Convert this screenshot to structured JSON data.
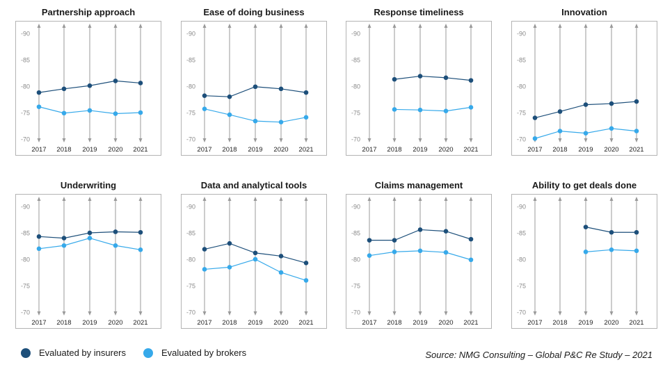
{
  "colors": {
    "insurers": "#1d4f7a",
    "brokers": "#36a9ea",
    "frame": "#b3b3b3",
    "arrow": "#9a9a9a",
    "tick": "#9a9a9a"
  },
  "legend": {
    "insurers_label": "Evaluated by insurers",
    "brokers_label": "Evaluated by brokers"
  },
  "source": "Source: NMG Consulting – Global P&C Re Study – 2021",
  "chart_data": [
    {
      "type": "line",
      "title": "Partnership approach",
      "categories": [
        "2017",
        "2018",
        "2019",
        "2020",
        "2021"
      ],
      "ylim": [
        70,
        90
      ],
      "yticks": [
        "90",
        "85",
        "80",
        "75",
        "70"
      ],
      "series": [
        {
          "name": "Evaluated by insurers",
          "values": [
            78.8,
            79.5,
            80.1,
            81.0,
            80.6
          ]
        },
        {
          "name": "Evaluated by brokers",
          "values": [
            76.1,
            74.9,
            75.4,
            74.8,
            75.0
          ]
        }
      ]
    },
    {
      "type": "line",
      "title": "Ease of doing business",
      "categories": [
        "2017",
        "2018",
        "2019",
        "2020",
        "2021"
      ],
      "ylim": [
        70,
        90
      ],
      "yticks": [
        "90",
        "85",
        "80",
        "75",
        "70"
      ],
      "series": [
        {
          "name": "Evaluated by insurers",
          "values": [
            78.2,
            78.0,
            79.9,
            79.5,
            78.8
          ]
        },
        {
          "name": "Evaluated by brokers",
          "values": [
            75.7,
            74.6,
            73.4,
            73.2,
            74.1
          ]
        }
      ]
    },
    {
      "type": "line",
      "title": "Response timeliness",
      "categories": [
        "2017",
        "2018",
        "2019",
        "2020",
        "2021"
      ],
      "ylim": [
        70,
        90
      ],
      "yticks": [
        "90",
        "85",
        "80",
        "75",
        "70"
      ],
      "series": [
        {
          "name": "Evaluated by insurers",
          "values": [
            null,
            81.3,
            81.9,
            81.6,
            81.1
          ]
        },
        {
          "name": "Evaluated by brokers",
          "values": [
            null,
            75.6,
            75.5,
            75.3,
            76.0
          ]
        }
      ]
    },
    {
      "type": "line",
      "title": "Innovation",
      "categories": [
        "2017",
        "2018",
        "2019",
        "2020",
        "2021"
      ],
      "ylim": [
        70,
        90
      ],
      "yticks": [
        "90",
        "85",
        "80",
        "75",
        "70"
      ],
      "series": [
        {
          "name": "Evaluated by insurers",
          "values": [
            74.0,
            75.2,
            76.5,
            76.7,
            77.1
          ]
        },
        {
          "name": "Evaluated by brokers",
          "values": [
            70.1,
            71.5,
            71.1,
            72.0,
            71.5
          ]
        }
      ]
    },
    {
      "type": "line",
      "title": "Underwriting",
      "categories": [
        "2017",
        "2018",
        "2019",
        "2020",
        "2021"
      ],
      "ylim": [
        70,
        90
      ],
      "yticks": [
        "90",
        "85",
        "80",
        "75",
        "70"
      ],
      "series": [
        {
          "name": "Evaluated by insurers",
          "values": [
            84.3,
            84.0,
            85.0,
            85.2,
            85.1
          ]
        },
        {
          "name": "Evaluated by brokers",
          "values": [
            82.0,
            82.6,
            84.0,
            82.6,
            81.8
          ]
        }
      ]
    },
    {
      "type": "line",
      "title": "Data and analytical tools",
      "categories": [
        "2017",
        "2018",
        "2019",
        "2020",
        "2021"
      ],
      "ylim": [
        70,
        90
      ],
      "yticks": [
        "90",
        "85",
        "80",
        "75",
        "70"
      ],
      "series": [
        {
          "name": "Evaluated by insurers",
          "values": [
            81.9,
            83.0,
            81.2,
            80.6,
            79.3
          ]
        },
        {
          "name": "Evaluated by brokers",
          "values": [
            78.1,
            78.5,
            80.0,
            77.5,
            76.0
          ]
        }
      ]
    },
    {
      "type": "line",
      "title": "Claims management",
      "categories": [
        "2017",
        "2018",
        "2019",
        "2020",
        "2021"
      ],
      "ylim": [
        70,
        90
      ],
      "yticks": [
        "90",
        "85",
        "80",
        "75",
        "70"
      ],
      "series": [
        {
          "name": "Evaluated by insurers",
          "values": [
            83.6,
            83.6,
            85.6,
            85.3,
            83.8
          ]
        },
        {
          "name": "Evaluated by brokers",
          "values": [
            80.7,
            81.4,
            81.6,
            81.3,
            79.9
          ]
        }
      ]
    },
    {
      "type": "line",
      "title": "Ability to get deals done",
      "categories": [
        "2017",
        "2018",
        "2019",
        "2020",
        "2021"
      ],
      "ylim": [
        70,
        90
      ],
      "yticks": [
        "90",
        "85",
        "80",
        "75",
        "70"
      ],
      "series": [
        {
          "name": "Evaluated by insurers",
          "values": [
            null,
            null,
            86.1,
            85.1,
            85.1
          ]
        },
        {
          "name": "Evaluated by brokers",
          "values": [
            null,
            null,
            81.4,
            81.8,
            81.6
          ]
        }
      ]
    }
  ]
}
